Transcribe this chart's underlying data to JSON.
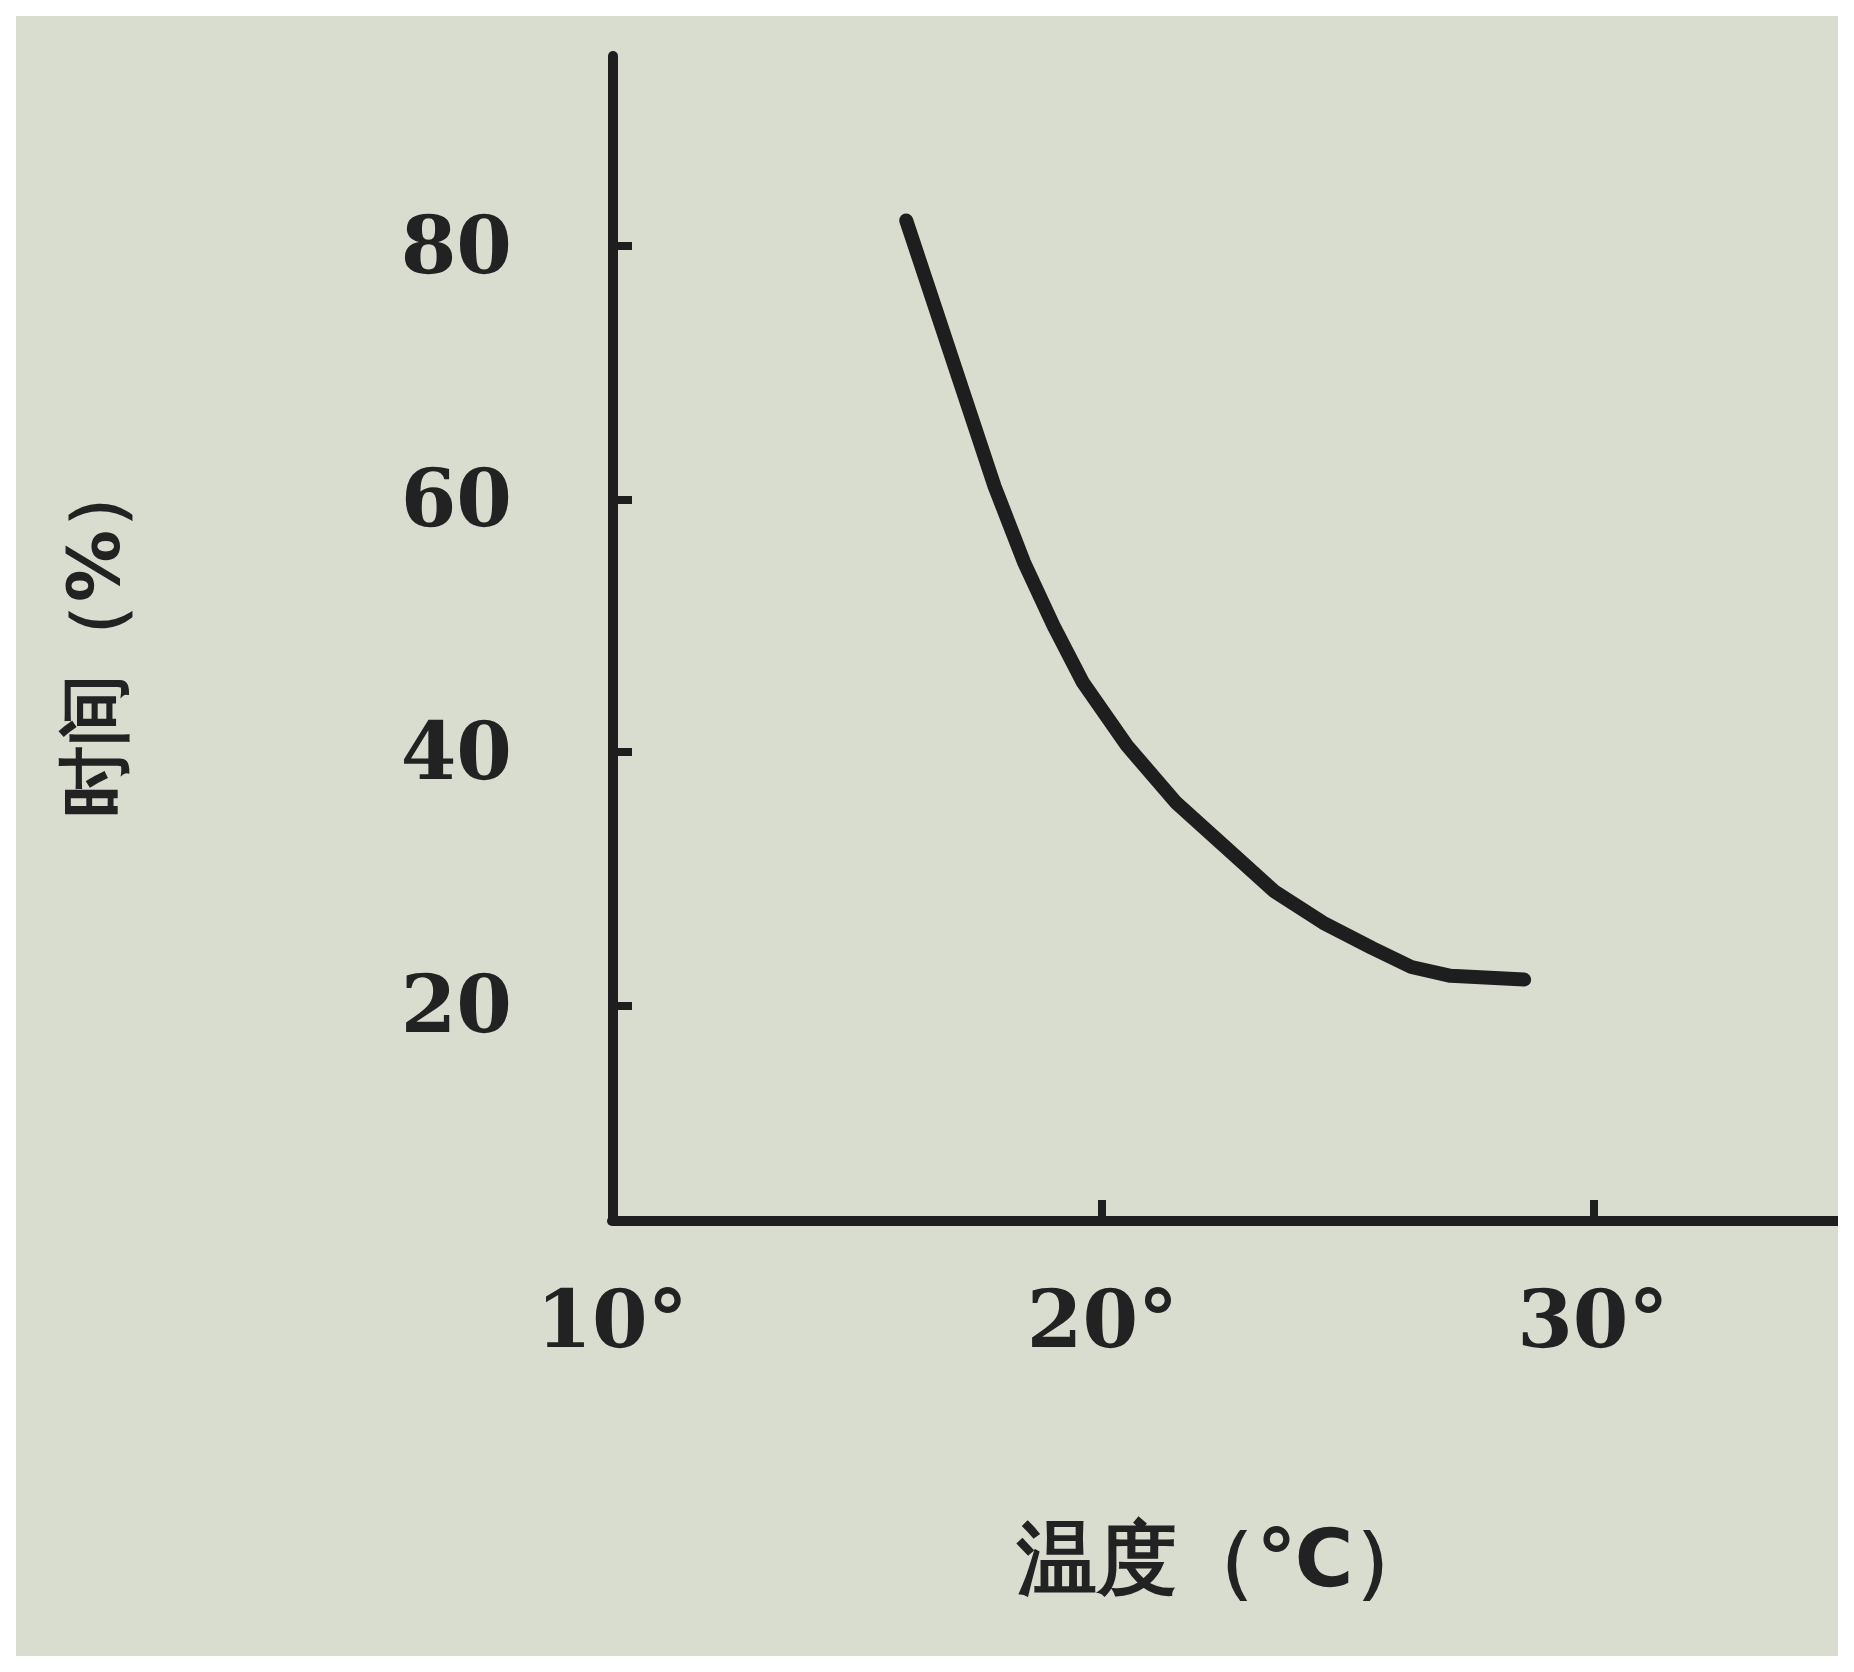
{
  "chart_data": {
    "type": "line",
    "xlabel": "温度（℃）",
    "ylabel": "时间（%）",
    "x": [
      16.0,
      16.6,
      17.2,
      17.8,
      18.4,
      19.0,
      19.6,
      20.5,
      21.5,
      22.5,
      23.5,
      24.5,
      25.5,
      26.3,
      27.1,
      28.6
    ],
    "series": [
      {
        "color": "#1e1e1e",
        "values": [
          82,
          75,
          68,
          61,
          55,
          50,
          45.5,
          40.5,
          36,
          32.5,
          29,
          26.5,
          24.5,
          23,
          22.3,
          22
        ]
      }
    ],
    "xlim": [
      10,
      35
    ],
    "xticks": [
      {
        "value": 10,
        "label": "10°"
      },
      {
        "value": 20,
        "label": "20°"
      },
      {
        "value": 30,
        "label": "30°"
      }
    ],
    "ylim": [
      3,
      95
    ],
    "yticks": [
      20,
      40,
      60,
      80
    ],
    "grid": false,
    "line_style": "solid"
  }
}
